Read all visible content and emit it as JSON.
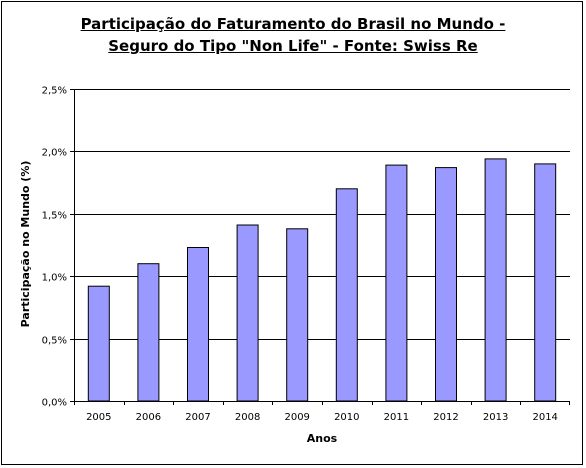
{
  "chart_data": {
    "type": "bar",
    "title_line1": "Participação do Faturamento do Brasil  no Mundo -",
    "title_line2": "Seguro do Tipo \"Non Life\" - Fonte: Swiss Re",
    "xlabel": "Anos",
    "ylabel": "Participação no Mundo (%)",
    "categories": [
      "2005",
      "2006",
      "2007",
      "2008",
      "2009",
      "2010",
      "2011",
      "2012",
      "2013",
      "2014"
    ],
    "values": [
      0.92,
      1.1,
      1.23,
      1.41,
      1.38,
      1.7,
      1.89,
      1.87,
      1.94,
      1.9
    ],
    "ylim": [
      0,
      2.5
    ],
    "yticks": [
      0,
      0.5,
      1.0,
      1.5,
      2.0,
      2.5
    ],
    "ytick_labels": [
      "0,0%",
      "0,5%",
      "1,0%",
      "1,5%",
      "2,0%",
      "2,5%"
    ],
    "grid": true,
    "bar_color": "#9999ff"
  }
}
